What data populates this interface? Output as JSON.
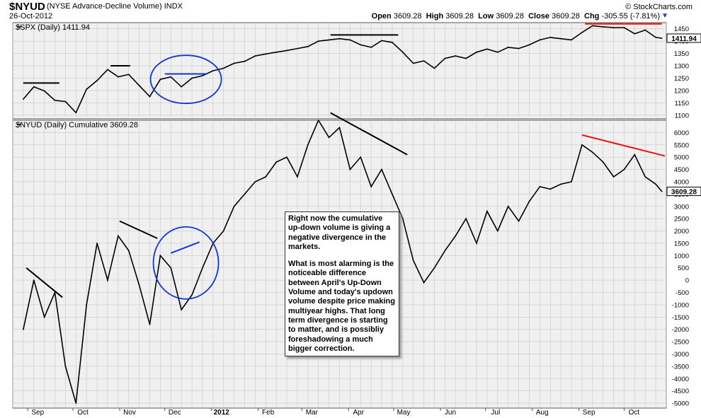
{
  "header": {
    "symbol": "$NYUD",
    "name": "(NYSE Advance-Decline Volume)  INDX",
    "date": "26-Oct-2012",
    "credit": "© StockCharts.com",
    "open_label": "Open",
    "open": "3609.28",
    "high_label": "High",
    "high": "3609.28",
    "low_label": "Low",
    "low": "3609.28",
    "close_label": "Close",
    "close": "3609.28",
    "chg_label": "Chg",
    "chg": "-305.55 (-7.81%)",
    "chg_arrow": "▼"
  },
  "colors": {
    "price": "#000000",
    "grid": "#c8c8c8",
    "panel_bg": "#f0f0f0",
    "black_trend": "#000000",
    "red_trend": "#ee1111",
    "blue_circle": "#1133dd"
  },
  "annotation": {
    "p1": "Right now the cumulative up-down volume is giving a negative divergence in the markets.",
    "p2": "What is most alarming is the noticeable difference between April's Up-Down Volume and today's updown volume despite price making multiyear highs. That long term divergence is starting to matter, and is possibliy foreshadowing a much bigger correction."
  },
  "chart_data": [
    {
      "type": "line",
      "label": "$SPX (Daily) 1411.94",
      "last_value_label": "1411.94",
      "y_ticks": [
        1100,
        1150,
        1200,
        1250,
        1300,
        1350,
        1400,
        1450
      ],
      "ylim": [
        1085,
        1475
      ],
      "x_labels": [
        "Sep",
        "Oct",
        "Nov",
        "Dec",
        "2012",
        "Feb",
        "Mar",
        "Apr",
        "May",
        "Jun",
        "Jul",
        "Aug",
        "Sep",
        "Oct"
      ],
      "x": [
        "2011-08-29",
        "2011-09-05",
        "2011-09-12",
        "2011-09-19",
        "2011-09-26",
        "2011-10-03",
        "2011-10-10",
        "2011-10-17",
        "2011-10-24",
        "2011-10-31",
        "2011-11-07",
        "2011-11-14",
        "2011-11-21",
        "2011-11-28",
        "2011-12-05",
        "2011-12-12",
        "2011-12-19",
        "2011-12-26",
        "2012-01-02",
        "2012-01-09",
        "2012-01-16",
        "2012-01-23",
        "2012-01-30",
        "2012-02-06",
        "2012-02-13",
        "2012-02-20",
        "2012-02-27",
        "2012-03-05",
        "2012-03-12",
        "2012-03-19",
        "2012-03-26",
        "2012-04-02",
        "2012-04-09",
        "2012-04-16",
        "2012-04-23",
        "2012-04-30",
        "2012-05-07",
        "2012-05-14",
        "2012-05-21",
        "2012-05-28",
        "2012-06-04",
        "2012-06-11",
        "2012-06-18",
        "2012-06-25",
        "2012-07-02",
        "2012-07-09",
        "2012-07-16",
        "2012-07-23",
        "2012-07-30",
        "2012-08-06",
        "2012-08-13",
        "2012-08-20",
        "2012-08-27",
        "2012-09-03",
        "2012-09-10",
        "2012-09-17",
        "2012-09-24",
        "2012-10-01",
        "2012-10-08",
        "2012-10-15",
        "2012-10-22",
        "2012-10-26"
      ],
      "values": [
        1165,
        1215,
        1198,
        1160,
        1155,
        1110,
        1205,
        1240,
        1285,
        1255,
        1265,
        1220,
        1175,
        1245,
        1255,
        1215,
        1250,
        1260,
        1280,
        1290,
        1310,
        1318,
        1340,
        1348,
        1355,
        1362,
        1370,
        1378,
        1400,
        1405,
        1410,
        1405,
        1385,
        1375,
        1402,
        1395,
        1355,
        1310,
        1320,
        1290,
        1330,
        1340,
        1330,
        1355,
        1368,
        1355,
        1375,
        1370,
        1385,
        1405,
        1415,
        1410,
        1405,
        1435,
        1462,
        1458,
        1455,
        1455,
        1430,
        1445,
        1415,
        1412
      ],
      "trendlines": [
        {
          "color": "black",
          "points": [
            [
              "2011-08-29",
              1230
            ],
            [
              "2011-09-22",
              1230
            ]
          ]
        },
        {
          "color": "black",
          "points": [
            [
              "2011-10-26",
              1300
            ],
            [
              "2011-11-08",
              1300
            ]
          ]
        },
        {
          "color": "blue",
          "points": [
            [
              "2011-12-01",
              1267
            ],
            [
              "2011-12-29",
              1267
            ]
          ]
        },
        {
          "color": "black",
          "points": [
            [
              "2012-03-20",
              1425
            ],
            [
              "2012-05-04",
              1425
            ]
          ]
        },
        {
          "color": "red",
          "points": [
            [
              "2012-09-05",
              1470
            ],
            [
              "2012-10-26",
              1470
            ]
          ]
        }
      ],
      "circles": [
        {
          "color": "blue",
          "center": [
            "2011-12-15",
            1245
          ]
        }
      ]
    },
    {
      "type": "line",
      "label": "$NYUD (Daily) Cumulative 3609.28",
      "last_value_label": "3609.28",
      "y_ticks": [
        -5000,
        -4500,
        -4000,
        -3500,
        -3000,
        -2500,
        -2000,
        -1500,
        -1000,
        -500,
        0,
        500,
        1000,
        1500,
        2000,
        2500,
        3000,
        3500,
        4000,
        4500,
        5000,
        5500,
        6000
      ],
      "ylim": [
        -5200,
        6500
      ],
      "x": [
        "2011-08-29",
        "2011-09-05",
        "2011-09-12",
        "2011-09-19",
        "2011-09-26",
        "2011-10-03",
        "2011-10-10",
        "2011-10-17",
        "2011-10-24",
        "2011-10-31",
        "2011-11-07",
        "2011-11-14",
        "2011-11-21",
        "2011-11-28",
        "2011-12-05",
        "2011-12-12",
        "2011-12-19",
        "2011-12-26",
        "2012-01-02",
        "2012-01-09",
        "2012-01-16",
        "2012-01-23",
        "2012-01-30",
        "2012-02-06",
        "2012-02-13",
        "2012-02-20",
        "2012-02-27",
        "2012-03-05",
        "2012-03-12",
        "2012-03-19",
        "2012-03-26",
        "2012-04-02",
        "2012-04-09",
        "2012-04-16",
        "2012-04-23",
        "2012-04-30",
        "2012-05-07",
        "2012-05-14",
        "2012-05-21",
        "2012-05-28",
        "2012-06-04",
        "2012-06-11",
        "2012-06-18",
        "2012-06-25",
        "2012-07-02",
        "2012-07-09",
        "2012-07-16",
        "2012-07-23",
        "2012-07-30",
        "2012-08-06",
        "2012-08-13",
        "2012-08-20",
        "2012-08-27",
        "2012-09-03",
        "2012-09-10",
        "2012-09-17",
        "2012-09-24",
        "2012-10-01",
        "2012-10-08",
        "2012-10-15",
        "2012-10-22",
        "2012-10-26"
      ],
      "values": [
        -2000,
        0,
        -1500,
        -500,
        -3500,
        -5000,
        -1000,
        1500,
        0,
        1800,
        1200,
        -200,
        -1800,
        1000,
        500,
        -1200,
        -600,
        500,
        1500,
        2000,
        3000,
        3500,
        4000,
        4200,
        4800,
        5000,
        4200,
        5500,
        6500,
        5800,
        6200,
        4500,
        5000,
        3800,
        4500,
        3500,
        2500,
        800,
        -100,
        500,
        1200,
        1800,
        2500,
        1500,
        2800,
        2000,
        3000,
        2400,
        3200,
        3800,
        3700,
        3900,
        4000,
        5500,
        5200,
        4800,
        4200,
        4500,
        5100,
        4200,
        3900,
        3609
      ],
      "trendlines": [
        {
          "color": "black",
          "points": [
            [
              "2011-08-31",
              500
            ],
            [
              "2011-09-24",
              -700
            ]
          ]
        },
        {
          "color": "black",
          "points": [
            [
              "2011-11-01",
              2400
            ],
            [
              "2011-11-26",
              1700
            ]
          ]
        },
        {
          "color": "blue",
          "points": [
            [
              "2011-12-05",
              1100
            ],
            [
              "2011-12-24",
              1550
            ]
          ]
        },
        {
          "color": "black",
          "points": [
            [
              "2012-03-20",
              6800
            ],
            [
              "2012-05-10",
              5100
            ]
          ]
        },
        {
          "color": "red",
          "points": [
            [
              "2012-09-03",
              5900
            ],
            [
              "2012-10-28",
              5050
            ]
          ]
        }
      ],
      "circles": [
        {
          "color": "blue",
          "center": [
            "2011-12-15",
            700
          ]
        }
      ]
    }
  ]
}
